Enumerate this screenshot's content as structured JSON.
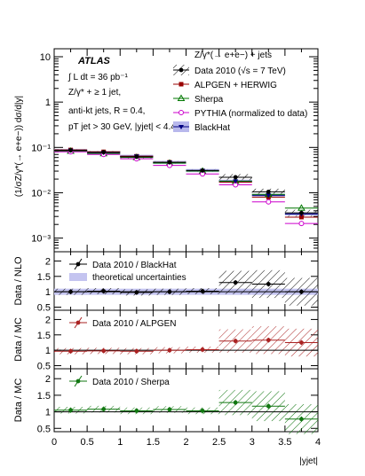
{
  "chart_data": [
    {
      "type": "scatter",
      "panel": "main",
      "ylabel": "(1/σZ/γ*(→ e+e−)) dσ/d|y|",
      "ylog": true,
      "ylim": [
        0.0005,
        15
      ],
      "yticks": [
        {
          "v": 0.001,
          "label": "10⁻³"
        },
        {
          "v": 0.01,
          "label": "10⁻²"
        },
        {
          "v": 0.1,
          "label": "10⁻¹"
        },
        {
          "v": 1,
          "label": "1"
        },
        {
          "v": 10,
          "label": "10"
        }
      ],
      "x_edges": [
        0,
        0.5,
        1,
        1.5,
        2,
        2.5,
        3,
        3.5,
        4
      ],
      "atlas_label": "ATLAS",
      "lumi_label": "∫ L dt = 36 pb⁻¹",
      "annotations": [
        "Z/γ* + ≥ 1 jet,",
        "anti-kt jets, R = 0.4,",
        "pT jet > 30 GeV, |yjet| < 4.4"
      ],
      "legend_title": "Z/γ*(→ e+e−) + jets",
      "series": [
        {
          "name": "Data 2010 (√s = 7 TeV)",
          "values": [
            0.086,
            0.078,
            0.062,
            0.047,
            0.031,
            0.022,
            0.0105,
            0.0036
          ],
          "color": "#000000"
        },
        {
          "name": "ALPGEN + HERWIG",
          "values": [
            0.088,
            0.08,
            0.064,
            0.047,
            0.03,
            0.017,
            0.008,
            0.0029
          ],
          "color": "#990000"
        },
        {
          "name": "Sherpa",
          "values": [
            0.083,
            0.073,
            0.06,
            0.045,
            0.03,
            0.018,
            0.0092,
            0.0046
          ],
          "color": "#007700"
        },
        {
          "name": "PYTHIA (normalized to data)",
          "values": [
            0.08,
            0.07,
            0.056,
            0.04,
            0.026,
            0.015,
            0.0063,
            0.0021
          ],
          "color": "#cc00cc"
        },
        {
          "name": "BlackHat",
          "values": [
            0.086,
            0.077,
            0.064,
            0.047,
            0.031,
            0.018,
            0.0088,
            0.0034
          ],
          "color": "#000080"
        }
      ]
    },
    {
      "type": "scatter",
      "panel": "ratio-nlo",
      "ylabel": "Data / NLO",
      "ylim": [
        0.4,
        2.3
      ],
      "yticks": [
        0.5,
        1,
        1.5,
        2
      ],
      "legend": [
        "Data 2010 / BlackHat",
        "theoretical uncertainties"
      ],
      "x": [
        0.25,
        0.75,
        1.25,
        1.75,
        2.25,
        2.75,
        3.25,
        3.75
      ],
      "values": [
        1.0,
        1.02,
        0.98,
        1.0,
        1.02,
        1.3,
        1.25,
        1.0
      ]
    },
    {
      "type": "scatter",
      "panel": "ratio-alpgen",
      "ylabel": "Data / MC",
      "ylim": [
        0.4,
        2.3
      ],
      "yticks": [
        0.5,
        1,
        1.5,
        2
      ],
      "legend": [
        "Data 2010 / ALPGEN"
      ],
      "x": [
        0.25,
        0.75,
        1.25,
        1.75,
        2.25,
        2.75,
        3.25,
        3.75
      ],
      "values": [
        0.97,
        0.98,
        0.97,
        1.0,
        1.02,
        1.3,
        1.33,
        1.25
      ]
    },
    {
      "type": "scatter",
      "panel": "ratio-sherpa",
      "ylabel": "Data / MC",
      "ylim": [
        0.4,
        2.3
      ],
      "yticks": [
        0.5,
        1,
        1.5,
        2
      ],
      "legend": [
        "Data 2010 / Sherpa"
      ],
      "x": [
        0.25,
        0.75,
        1.25,
        1.75,
        2.25,
        2.75,
        3.25,
        3.75
      ],
      "values": [
        1.05,
        1.08,
        1.03,
        1.07,
        1.03,
        1.28,
        1.17,
        0.78
      ]
    }
  ],
  "xaxis": {
    "label": "|yjet|",
    "ticks": [
      "0",
      "0.5",
      "1",
      "1.5",
      "2",
      "2.5",
      "3",
      "3.5",
      "4"
    ]
  }
}
